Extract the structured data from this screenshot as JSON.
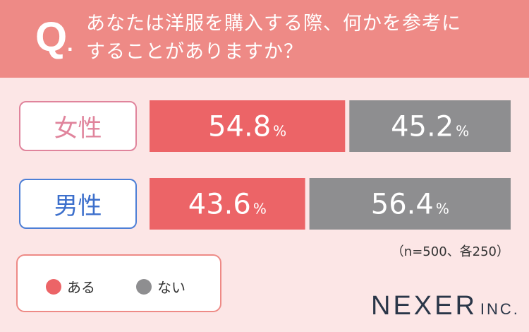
{
  "question": {
    "mark": "Q",
    "mark_dot": ".",
    "line1": "あなたは洋服を購入する際、何かを参考に",
    "line2": "することがありますか？"
  },
  "colors": {
    "yes": "#ec6467",
    "no": "#8e8e90",
    "header": "#ee8a86",
    "background": "#fce6e6"
  },
  "chart_data": {
    "type": "bar",
    "stacked": true,
    "orientation": "horizontal",
    "categories": [
      "女性",
      "男性"
    ],
    "series": [
      {
        "name": "ある",
        "values": [
          54.8,
          43.6
        ]
      },
      {
        "name": "ない",
        "values": [
          45.2,
          56.4
        ]
      }
    ],
    "unit": "%",
    "xlim": [
      0,
      100
    ],
    "note": "（n=500、各250）",
    "legend_position": "bottom-left"
  },
  "logo": {
    "main": "NEXER",
    "suffix": "INC."
  }
}
